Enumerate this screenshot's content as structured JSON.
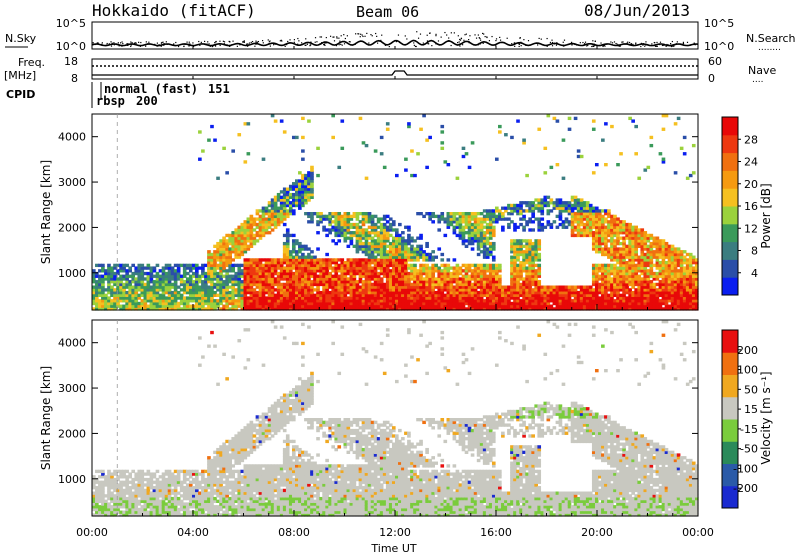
{
  "header": {
    "station": "Hokkaido (fitACF)",
    "beam": "Beam 06",
    "date": "08/Jun/2013"
  },
  "nsky_panel": {
    "left_label": "N.Sky",
    "right_label": "N.Search",
    "right_legend": "........",
    "ticks": [
      "10^5",
      "10^0"
    ],
    "right_ticks": [
      "10^5",
      "10^0"
    ]
  },
  "freq_panel": {
    "left_label_1": "Freq.",
    "left_label_2": "[MHz]",
    "left_ticks": [
      "18",
      "8"
    ],
    "right_ticks": [
      "60",
      "0"
    ],
    "right_label": "Nave",
    "right_legend": "...."
  },
  "cpid_panel": {
    "label": "CPID",
    "modes": [
      {
        "name": "rbsp",
        "id": "200"
      },
      {
        "name": "normal (fast)",
        "id": "151"
      }
    ]
  },
  "x_axis": {
    "label": "Time UT",
    "ticks": [
      "00:00",
      "04:00",
      "08:00",
      "12:00",
      "16:00",
      "20:00",
      "00:00"
    ]
  },
  "chart_data": [
    {
      "type": "heatmap",
      "quantity": "Power",
      "ylabel": "Slant Range [km]",
      "yticks": [
        "4000",
        "3000",
        "2000",
        "1000"
      ],
      "ylim": [
        180,
        4500
      ],
      "xlim_hours": [
        0,
        24
      ],
      "colorbar_label": "Power [dB]",
      "colorbar_ticks": [
        "28",
        "24",
        "20",
        "16",
        "12",
        "8",
        "4"
      ],
      "colorbar_colors": [
        "#0a1ef0",
        "#2a4ea8",
        "#3b7d80",
        "#3a9a5a",
        "#9bd23c",
        "#f5c020",
        "#f59a10",
        "#f07010",
        "#ee3810",
        "#e80808"
      ]
    },
    {
      "type": "heatmap",
      "quantity": "Velocity",
      "ylabel": "Slant Range [km]",
      "yticks": [
        "4000",
        "3000",
        "2000",
        "1000"
      ],
      "ylim": [
        180,
        4500
      ],
      "xlim_hours": [
        0,
        24
      ],
      "colorbar_label": "Velocity [m s⁻¹]",
      "colorbar_ticks": [
        "200",
        "100",
        "50",
        "15",
        "-15",
        "-50",
        "-100",
        "-200"
      ],
      "colorbar_colors": [
        "#1a2ad0",
        "#2a5aa8",
        "#2a8a5a",
        "#7acc3c",
        "#c8c8c0",
        "#f0a820",
        "#f07010",
        "#e81010"
      ]
    }
  ]
}
